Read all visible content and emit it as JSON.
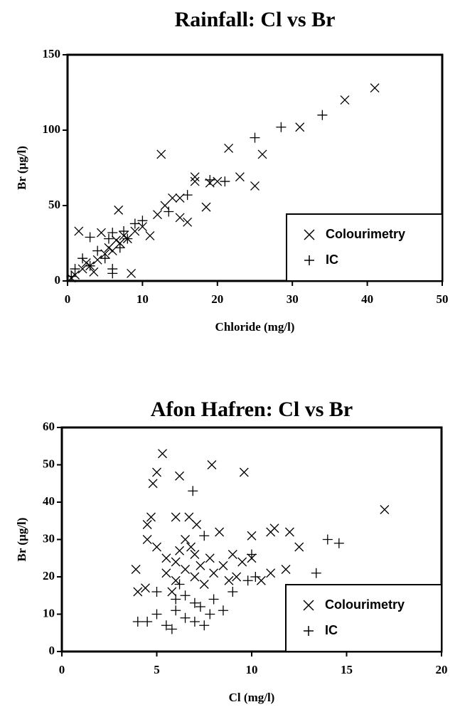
{
  "chart_data": [
    {
      "type": "scatter",
      "title": "Rainfall: Cl vs Br",
      "xlabel": "Chloride (mg/l)",
      "ylabel": "Br (µg/l)",
      "xlim": [
        0,
        50
      ],
      "ylim": [
        0,
        150
      ],
      "xticks": [
        0,
        10,
        20,
        30,
        40,
        50
      ],
      "yticks": [
        0,
        50,
        100,
        150
      ],
      "legend": "lower right",
      "series": [
        {
          "name": "Colourimetry",
          "marker": "x",
          "color": "#000000",
          "x": [
            41,
            37,
            31,
            26,
            25,
            23,
            21.5,
            18.5,
            17,
            17,
            16,
            15,
            14,
            12.5,
            12,
            11,
            10,
            8.5,
            6.8,
            1.5,
            4.5,
            9,
            8,
            7,
            6,
            5,
            4,
            3,
            2,
            1,
            0.5,
            2.5,
            3.5,
            5.5,
            6.5,
            7.5,
            13,
            15,
            19,
            20
          ],
          "y": [
            128,
            120,
            102,
            84,
            63,
            69,
            88,
            49,
            69,
            66,
            39,
            42,
            55,
            84,
            44,
            30,
            36,
            5,
            47,
            33,
            32,
            33,
            28,
            25,
            20,
            18,
            14,
            10,
            8,
            4,
            2,
            12,
            6,
            22,
            27,
            30,
            50,
            55,
            65,
            66
          ]
        },
        {
          "name": "IC",
          "marker": "+",
          "color": "#000000",
          "x": [
            34,
            28.5,
            25,
            21,
            19,
            16,
            13.5,
            10,
            9,
            7.5,
            6,
            6,
            5.5,
            3,
            4,
            2,
            1,
            0.5,
            5,
            7,
            8,
            3,
            6
          ],
          "y": [
            110,
            102,
            95,
            66,
            67,
            57,
            46,
            40,
            38,
            33,
            32,
            5,
            28,
            29,
            20,
            15,
            8,
            3,
            15,
            22,
            28,
            10,
            8
          ]
        }
      ]
    },
    {
      "type": "scatter",
      "title": "Afon Hafren: Cl vs Br",
      "xlabel": "Cl (mg/l)",
      "ylabel": "Br (µg/l)",
      "xlim": [
        0,
        20
      ],
      "ylim": [
        0,
        60
      ],
      "xticks": [
        0,
        5,
        10,
        15,
        20
      ],
      "yticks": [
        0,
        10,
        20,
        30,
        40,
        50,
        60
      ],
      "legend": "lower right",
      "series": [
        {
          "name": "Colourimetry",
          "marker": "x",
          "color": "#000000",
          "x": [
            5.3,
            5,
            4.8,
            6.2,
            7.9,
            9.6,
            17,
            4.7,
            4.5,
            6.7,
            7.1,
            6,
            10,
            11.2,
            11,
            12,
            12.5,
            11.8,
            11,
            10.5,
            3.9,
            4,
            4.4,
            4.5,
            5,
            5.5,
            6,
            6.5,
            7,
            7.5,
            8,
            8.5,
            9,
            9.5,
            10,
            6,
            7,
            6.5,
            5.8,
            8.3,
            9.2,
            5.5,
            6.8,
            7.3,
            6.2,
            8.8,
            7.8
          ],
          "y": [
            53,
            48,
            45,
            47,
            50,
            48,
            38,
            36,
            34,
            36,
            34,
            36,
            31,
            33,
            32,
            32,
            28,
            22,
            21,
            19,
            22,
            16,
            17,
            30,
            28,
            25,
            24,
            22,
            20,
            18,
            21,
            23,
            26,
            24,
            25,
            19,
            26,
            30,
            16,
            32,
            20,
            21,
            28,
            23,
            27,
            19,
            25
          ]
        },
        {
          "name": "IC",
          "marker": "+",
          "color": "#000000",
          "x": [
            6.9,
            14,
            14.6,
            13.4,
            4,
            4.5,
            5,
            5.5,
            5.8,
            6,
            6.5,
            7,
            7.5,
            7.8,
            5,
            6,
            7,
            8,
            9,
            6.5,
            7.3,
            7.5,
            10,
            10.2,
            9.8,
            8.5,
            6.2
          ],
          "y": [
            43,
            30,
            29,
            21,
            8,
            8,
            10,
            7,
            6,
            11,
            9,
            8,
            7,
            10,
            16,
            14,
            13,
            14,
            16,
            15,
            12,
            31,
            26,
            20,
            19,
            11,
            18
          ]
        }
      ]
    }
  ]
}
